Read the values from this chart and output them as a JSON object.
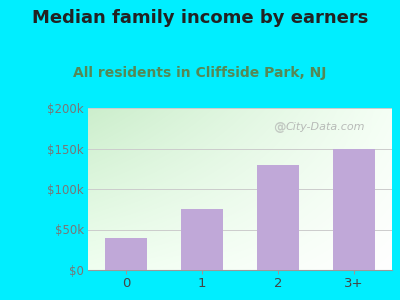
{
  "title": "Median family income by earners",
  "subtitle": "All residents in Cliffside Park, NJ",
  "categories": [
    "0",
    "1",
    "2",
    "3+"
  ],
  "values": [
    40000,
    75000,
    130000,
    150000
  ],
  "bar_color": "#c0a8d8",
  "bg_color": "#00eeff",
  "plot_bg_top_left": "#d8f0d0",
  "plot_bg_top_right": "#f0faf0",
  "plot_bg_bottom": "#ffffff",
  "ylim": [
    0,
    200000
  ],
  "yticks": [
    0,
    50000,
    100000,
    150000,
    200000
  ],
  "ytick_labels": [
    "$0",
    "$50k",
    "$100k",
    "$150k",
    "$200k"
  ],
  "title_fontsize": 13,
  "subtitle_fontsize": 10,
  "watermark": "City-Data.com"
}
